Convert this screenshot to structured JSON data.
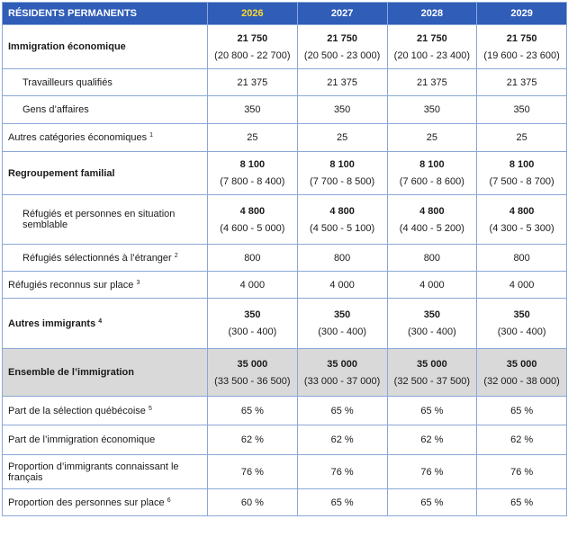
{
  "header": {
    "label": "RÉSIDENTS PERMANENTS",
    "years": [
      "2026",
      "2027",
      "2028",
      "2029"
    ]
  },
  "rows": [
    {
      "label": "Immigration économique",
      "values": [
        "21 750",
        "21 750",
        "21 750",
        "21 750"
      ],
      "ranges": [
        "(20 800 - 22 700)",
        "(20 500 - 23 000)",
        "(20 100 - 23 400)",
        "(19 600 - 23 600)"
      ]
    },
    {
      "label": "Travailleurs qualifiés",
      "values": [
        "21 375",
        "21 375",
        "21 375",
        "21 375"
      ]
    },
    {
      "label": "Gens d’affaires",
      "values": [
        "350",
        "350",
        "350",
        "350"
      ]
    },
    {
      "label": "Autres catégories économiques",
      "note": "1",
      "values": [
        "25",
        "25",
        "25",
        "25"
      ]
    },
    {
      "label": "Regroupement familial",
      "values": [
        "8 100",
        "8 100",
        "8 100",
        "8 100"
      ],
      "ranges": [
        "(7 800 - 8 400)",
        "(7 700 - 8 500)",
        "(7 600 - 8 600)",
        "(7 500 - 8 700)"
      ]
    },
    {
      "label": "Réfugiés et personnes en situation semblable",
      "values": [
        "4 800",
        "4 800",
        "4 800",
        "4 800"
      ],
      "ranges": [
        "(4 600 - 5 000)",
        "(4 500 - 5 100)",
        "(4 400 - 5 200)",
        "(4 300 - 5 300)"
      ]
    },
    {
      "label": "Réfugiés sélectionnés à l’étranger",
      "note": "2",
      "values": [
        "800",
        "800",
        "800",
        "800"
      ]
    },
    {
      "label": "Réfugiés reconnus sur place",
      "note": "3",
      "values": [
        "4 000",
        "4 000",
        "4 000",
        "4 000"
      ]
    },
    {
      "label": "Autres immigrants",
      "note": "4",
      "values": [
        "350",
        "350",
        "350",
        "350"
      ],
      "ranges": [
        "(300 - 400)",
        "(300 - 400)",
        "(300 - 400)",
        "(300 - 400)"
      ]
    },
    {
      "label": "Ensemble de l’immigration",
      "values": [
        "35 000",
        "35 000",
        "35 000",
        "35 000"
      ],
      "ranges": [
        "(33 500 - 36 500)",
        "(33 000 - 37 000)",
        "(32 500 - 37 500)",
        "(32 000 - 38 000)"
      ]
    },
    {
      "label": "Part de la sélection québécoise",
      "note": "5",
      "values": [
        "65 %",
        "65 %",
        "65 %",
        "65 %"
      ]
    },
    {
      "label": "Part de l’immigration économique",
      "values": [
        "62 %",
        "62 %",
        "62 %",
        "62 %"
      ]
    },
    {
      "label": "Proportion d’immigrants connaissant le français",
      "values": [
        "76 %",
        "76 %",
        "76 %",
        "76 %"
      ]
    },
    {
      "label": "Proportion des personnes sur place",
      "note": "6",
      "values": [
        "60 %",
        "65 %",
        "65 %",
        "65 %"
      ]
    }
  ]
}
